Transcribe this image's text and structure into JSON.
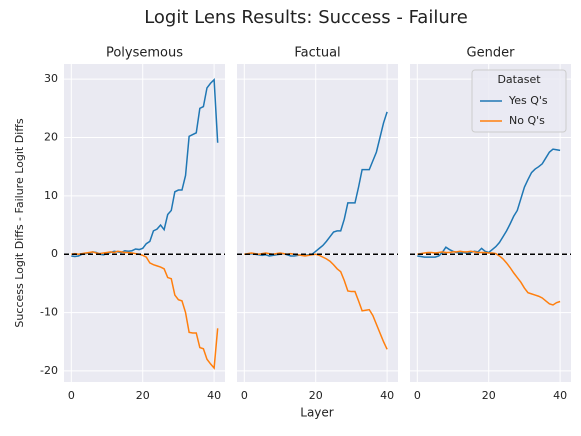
{
  "title": "Logit Lens Results: Success - Failure",
  "xlabel": "Layer",
  "ylabel": "Success Logit Diffs - Failure Logit Diffs",
  "chart_data": [
    {
      "type": "line",
      "title": "Polysemous",
      "x": [
        0,
        1,
        2,
        3,
        4,
        5,
        6,
        7,
        8,
        9,
        10,
        11,
        12,
        13,
        14,
        15,
        16,
        17,
        18,
        19,
        20,
        21,
        22,
        23,
        24,
        25,
        26,
        27,
        28,
        29,
        30,
        31,
        32,
        33,
        34,
        35,
        36,
        37,
        38,
        39,
        40,
        41
      ],
      "series": [
        {
          "name": "Yes Q's",
          "color": "#1f77b4",
          "values": [
            -0.3,
            -0.4,
            -0.3,
            0,
            0.1,
            0.2,
            0.4,
            0.3,
            0,
            -0.1,
            0.1,
            0.3,
            0.5,
            0.4,
            0.3,
            0.6,
            0.5,
            0.6,
            0.9,
            0.8,
            1,
            1.8,
            2.2,
            4,
            4.3,
            5,
            4.2,
            6.8,
            7.5,
            10.7,
            11,
            11,
            13.5,
            20.2,
            20.5,
            20.8,
            25,
            25.3,
            28.5,
            29.3,
            29.9,
            19.1
          ]
        },
        {
          "name": "No Q's",
          "color": "#ff7f0e",
          "values": [
            0,
            0.1,
            0,
            0.1,
            0.2,
            0.3,
            0.4,
            0.2,
            0.1,
            0.2,
            0.3,
            0.4,
            0.3,
            0.5,
            0.4,
            0.3,
            0.3,
            0.2,
            0.1,
            0,
            -0.2,
            -0.5,
            -1.5,
            -1.8,
            -2,
            -2.2,
            -2.5,
            -4,
            -4.2,
            -7,
            -7.8,
            -8,
            -10,
            -13.4,
            -13.5,
            -13.5,
            -16,
            -16.2,
            -18,
            -18.8,
            -19.5,
            -12.7
          ]
        }
      ],
      "xlim": [
        -2.05,
        43.05
      ],
      "xticks": [
        0,
        20,
        40
      ],
      "ylim": [
        -21.9,
        32.6
      ],
      "yticks": [
        -20,
        -10,
        0,
        10,
        20,
        30
      ],
      "hline": 0,
      "grid": true
    },
    {
      "type": "line",
      "title": "Factual",
      "x": [
        0,
        1,
        2,
        3,
        4,
        5,
        6,
        7,
        8,
        9,
        10,
        11,
        12,
        13,
        14,
        15,
        16,
        17,
        18,
        19,
        20,
        21,
        22,
        23,
        24,
        25,
        26,
        27,
        28,
        29,
        30,
        31,
        32,
        33,
        34,
        35,
        36,
        37,
        38,
        39,
        40
      ],
      "series": [
        {
          "name": "Yes Q's",
          "color": "#1f77b4",
          "values": [
            0,
            0,
            0.1,
            0,
            -0.1,
            -0.2,
            -0.1,
            -0.3,
            -0.2,
            -0.1,
            0,
            0.1,
            -0.1,
            -0.3,
            -0.3,
            -0.2,
            -0.1,
            -0.2,
            -0.1,
            0,
            0.5,
            1,
            1.5,
            2.2,
            3,
            3.8,
            4,
            4,
            6,
            8.8,
            8.8,
            8.8,
            11.5,
            14.5,
            14.5,
            14.5,
            16,
            17.5,
            20,
            22.5,
            24.4
          ]
        },
        {
          "name": "No Q's",
          "color": "#ff7f0e",
          "values": [
            0,
            0.1,
            0.2,
            0.1,
            0,
            0.1,
            0.2,
            0.1,
            0,
            0.1,
            0.2,
            0.1,
            0,
            0.1,
            0,
            -0.1,
            -0.2,
            -0.3,
            -0.2,
            -0.1,
            0,
            -0.2,
            -0.5,
            -0.8,
            -1.2,
            -1.8,
            -2.5,
            -3,
            -4.5,
            -6.3,
            -6.4,
            -6.4,
            -8,
            -9.7,
            -9.6,
            -9.5,
            -10.5,
            -12,
            -13.5,
            -15,
            -16.3
          ]
        }
      ],
      "xlim": [
        -2.05,
        43.05
      ],
      "xticks": [
        0,
        20,
        40
      ],
      "ylim": [
        -21.9,
        32.6
      ],
      "yticks": [
        -20,
        -10,
        0,
        10,
        20,
        30
      ],
      "hline": 0,
      "grid": true
    },
    {
      "type": "line",
      "title": "Gender",
      "x": [
        0,
        1,
        2,
        3,
        4,
        5,
        6,
        7,
        8,
        9,
        10,
        11,
        12,
        13,
        14,
        15,
        16,
        17,
        18,
        19,
        20,
        21,
        22,
        23,
        24,
        25,
        26,
        27,
        28,
        29,
        30,
        31,
        32,
        33,
        34,
        35,
        36,
        37,
        38,
        39,
        40
      ],
      "series": [
        {
          "name": "Yes Q's",
          "color": "#1f77b4",
          "values": [
            -0.3,
            -0.4,
            -0.5,
            -0.5,
            -0.5,
            -0.5,
            -0.3,
            0.3,
            1.2,
            0.8,
            0.5,
            0.3,
            0.2,
            0.3,
            0.1,
            0.3,
            0.5,
            0.4,
            1,
            0.5,
            0.3,
            0.8,
            1.3,
            2,
            3,
            4,
            5.2,
            6.5,
            7.5,
            9.5,
            11.5,
            12.8,
            14,
            14.6,
            15,
            15.5,
            16.5,
            17.5,
            18,
            17.9,
            17.8
          ]
        },
        {
          "name": "No Q's",
          "color": "#ff7f0e",
          "values": [
            0,
            0.1,
            0.2,
            0.3,
            0.3,
            0.2,
            0.3,
            0.4,
            0.3,
            0.3,
            0.4,
            0.4,
            0.5,
            0.4,
            0.4,
            0.5,
            0.4,
            0.3,
            0.3,
            0.3,
            0.2,
            0.2,
            0.1,
            -0.3,
            -0.8,
            -1.5,
            -2.3,
            -3.2,
            -4,
            -4.8,
            -5.8,
            -6.6,
            -6.8,
            -7,
            -7.2,
            -7.5,
            -8,
            -8.5,
            -8.7,
            -8.3,
            -8.1
          ]
        }
      ],
      "xlim": [
        -2.05,
        43.05
      ],
      "xticks": [
        0,
        20,
        40
      ],
      "ylim": [
        -21.9,
        32.6
      ],
      "yticks": [
        -20,
        -10,
        0,
        10,
        20,
        30
      ],
      "hline": 0,
      "grid": true,
      "legend": "upper right",
      "legend_title": "Dataset"
    }
  ]
}
